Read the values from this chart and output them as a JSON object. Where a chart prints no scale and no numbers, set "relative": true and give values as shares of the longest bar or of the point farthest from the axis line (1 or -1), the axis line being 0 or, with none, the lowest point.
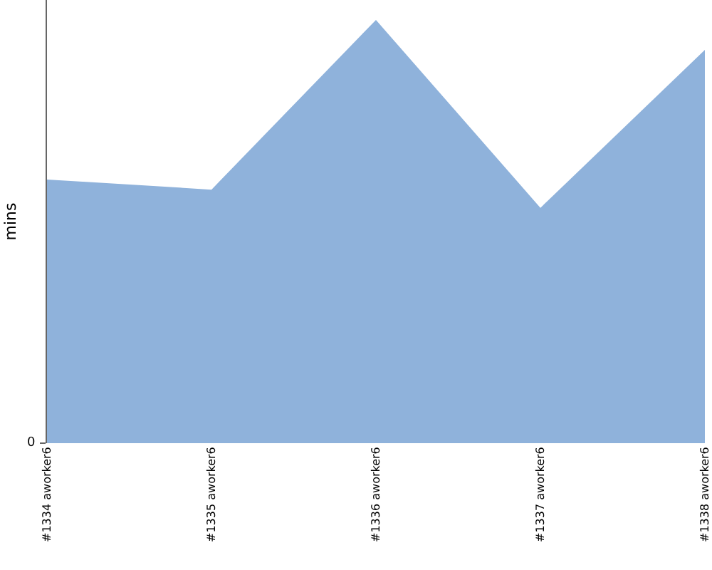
{
  "chart_data": {
    "type": "area",
    "ylabel": "mins",
    "relative": true,
    "annotations": [
      "0"
    ],
    "categories": [
      "#1334 aworker6",
      "#1335 aworker6",
      "#1336 aworker6",
      "#1337 aworker6",
      "#1338 aworker6"
    ],
    "series": [
      {
        "color": "#8fb2db",
        "values": [
          0.623,
          0.599,
          1,
          0.556,
          0.929
        ]
      }
    ]
  }
}
